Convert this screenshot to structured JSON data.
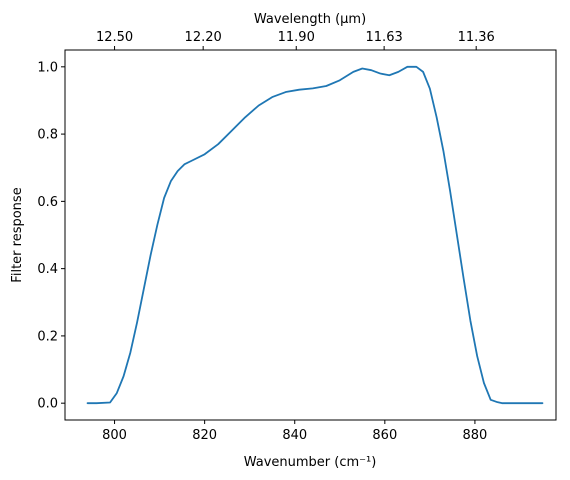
{
  "chart_data": {
    "type": "line",
    "title": "",
    "xlabel": "Wavenumber (cm⁻¹)",
    "ylabel": "Filter response",
    "top_xlabel": "Wavelength (μm)",
    "xlim": [
      789,
      898
    ],
    "ylim": [
      -0.05,
      1.05
    ],
    "x_ticks": [
      {
        "value": 800,
        "label": "800"
      },
      {
        "value": 820,
        "label": "820"
      },
      {
        "value": 840,
        "label": "840"
      },
      {
        "value": 860,
        "label": "860"
      },
      {
        "value": 880,
        "label": "880"
      }
    ],
    "y_ticks": [
      {
        "value": 0.0,
        "label": "0.0"
      },
      {
        "value": 0.2,
        "label": "0.2"
      },
      {
        "value": 0.4,
        "label": "0.4"
      },
      {
        "value": 0.6,
        "label": "0.6"
      },
      {
        "value": 0.8,
        "label": "0.8"
      },
      {
        "value": 1.0,
        "label": "1.0"
      }
    ],
    "top_ticks": [
      {
        "label": "12.50",
        "wavelength": 12.5
      },
      {
        "label": "12.20",
        "wavelength": 12.2
      },
      {
        "label": "11.90",
        "wavelength": 11.9
      },
      {
        "label": "11.63",
        "wavelength": 11.63
      },
      {
        "label": "11.36",
        "wavelength": 11.36
      }
    ],
    "grid": false,
    "series": [
      {
        "color": "#1f77b4",
        "x": [
          794,
          796,
          799,
          800.5,
          802,
          803.5,
          805,
          806.5,
          808,
          809.5,
          811,
          812.5,
          814,
          815.5,
          817,
          820,
          823,
          826,
          829,
          832,
          835,
          838,
          841,
          844,
          847,
          850,
          853,
          855,
          857,
          859,
          861,
          863,
          865,
          867,
          868.5,
          870,
          871.5,
          873,
          874.5,
          876,
          877.5,
          879,
          880.5,
          882,
          883.5,
          885,
          886,
          888,
          891,
          895
        ],
        "y": [
          0.0,
          0.0,
          0.002,
          0.03,
          0.08,
          0.15,
          0.24,
          0.34,
          0.44,
          0.53,
          0.61,
          0.66,
          0.69,
          0.71,
          0.72,
          0.74,
          0.77,
          0.81,
          0.85,
          0.885,
          0.91,
          0.925,
          0.932,
          0.936,
          0.943,
          0.96,
          0.985,
          0.995,
          0.99,
          0.98,
          0.975,
          0.985,
          1.0,
          1.0,
          0.985,
          0.935,
          0.85,
          0.75,
          0.63,
          0.5,
          0.37,
          0.245,
          0.14,
          0.06,
          0.01,
          0.003,
          0.0,
          0.0,
          0.0,
          0.0
        ]
      }
    ]
  }
}
